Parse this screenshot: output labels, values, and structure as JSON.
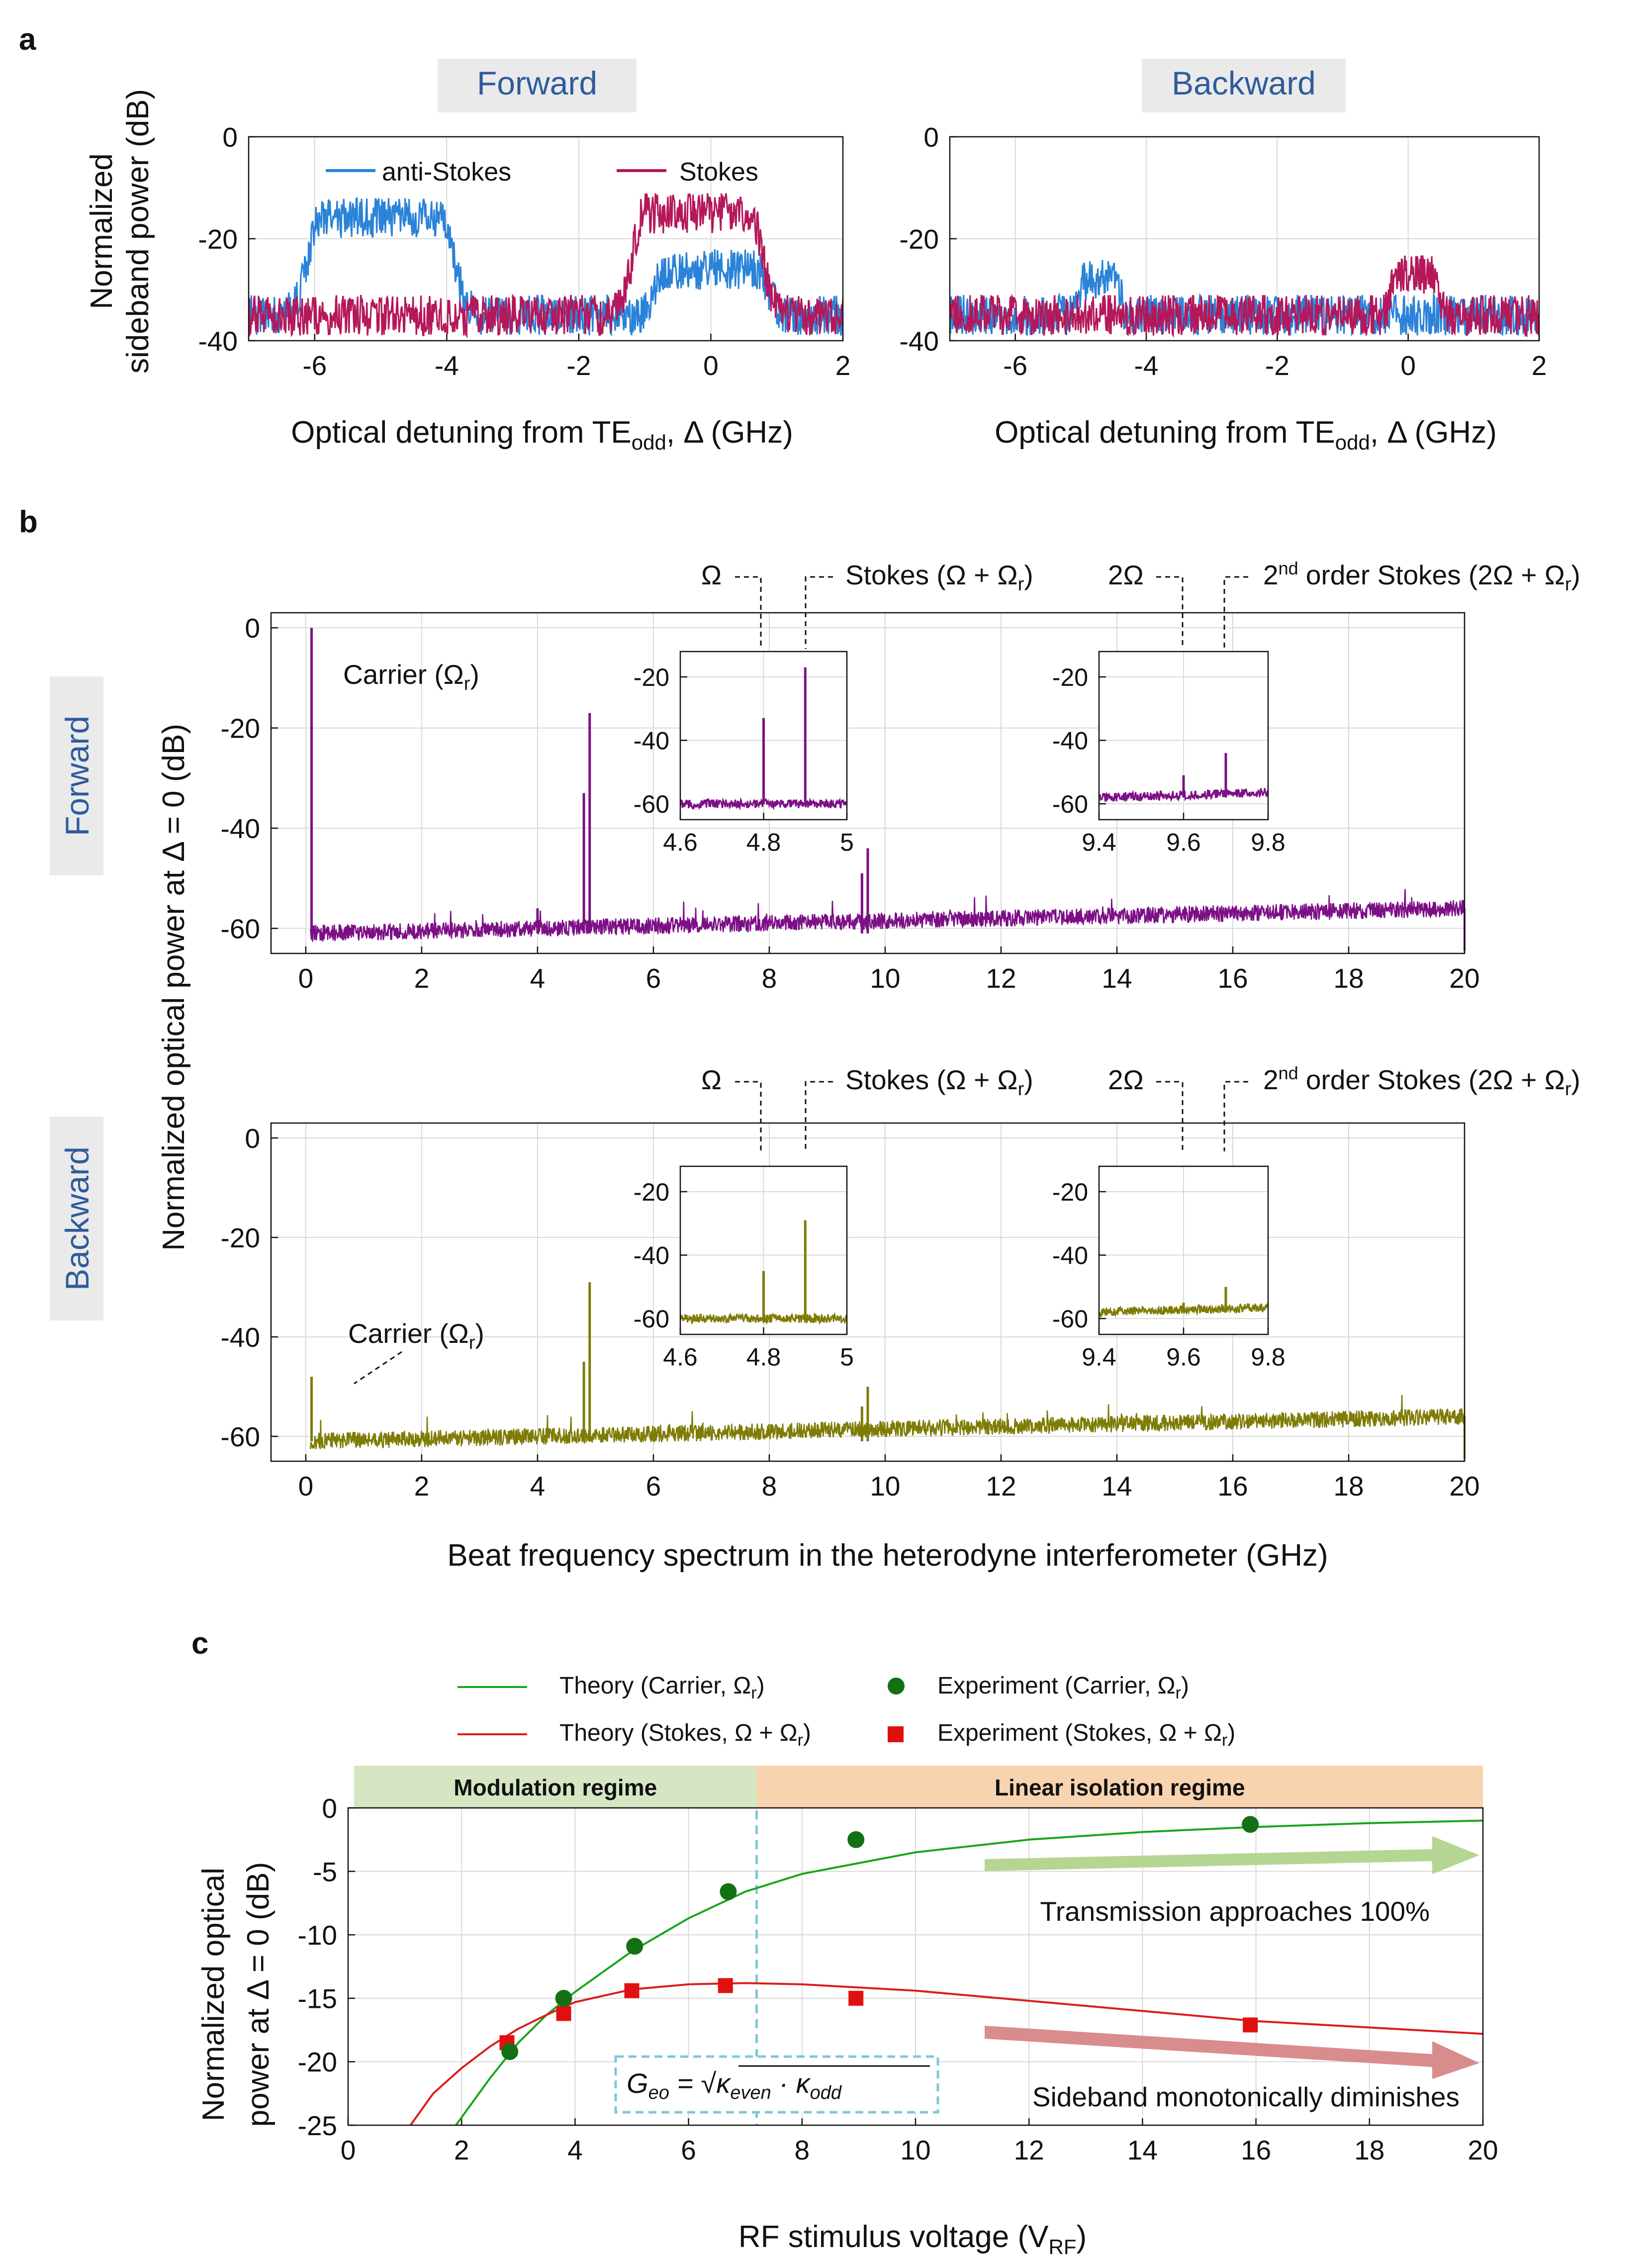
{
  "panels": {
    "a": {
      "letter": "a",
      "ylabel_line1": "Normalized",
      "ylabel_line2": "sideband power (dB)",
      "xlabel": "Optical detuning from TE",
      "xlabel_sub": "odd",
      "xlabel_tail": ", Δ (GHz)",
      "forward_tag": "Forward",
      "backward_tag": "Backward",
      "legend_anti": "anti-Stokes",
      "legend_stokes": "Stokes"
    },
    "b": {
      "letter": "b",
      "ylabel": "Normalized optical power at Δ = 0 (dB)",
      "xlabel": "Beat frequency spectrum in the heterodyne interferometer (GHz)",
      "forward_tag": "Forward",
      "backward_tag": "Backward",
      "carrier_main": "Carrier (Ω",
      "carrier_sub": "r",
      "carrier_close": ")",
      "omega": "Ω",
      "stokes_main": "Stokes (Ω + Ω",
      "stokes_sub": "r",
      "stokes_close": ")",
      "two_omega": "2Ω",
      "second_main": "2",
      "second_sup": "nd",
      "second_tail": " order Stokes (2Ω + Ω",
      "second_sub": "r",
      "second_close": ")"
    },
    "c": {
      "letter": "c",
      "ylabel_line1": "Normalized optical",
      "ylabel_line2": "power at Δ = 0 (dB)",
      "xlabel_main": "RF stimulus voltage (V",
      "xlabel_sub": "RF",
      "xlabel_close": ")",
      "legend_theory_carrier_main": "Theory (Carrier, Ω",
      "legend_theory_carrier_sub": "r",
      "legend_theory_stokes_main": "Theory (Stokes, Ω + Ω",
      "legend_theory_stokes_sub": "r",
      "legend_exp_carrier_main": "Experiment (Carrier, Ω",
      "legend_exp_carrier_sub": "r",
      "legend_exp_stokes_main": "Experiment (Stokes, Ω + Ω",
      "legend_exp_stokes_sub": "r",
      "regime_modulation": "Modulation regime",
      "regime_linear": "Linear isolation regime",
      "arrow_text_upper": "Transmission approaches 100%",
      "arrow_text_lower": "Sideband monotonically diminishes",
      "geo_G": "G",
      "geo_G_sub": "eo",
      "geo_eq": " = √",
      "geo_k1": "κ",
      "geo_k1_sub": "even",
      "geo_dot": " · ",
      "geo_k2": "κ",
      "geo_k2_sub": "odd"
    }
  },
  "colors": {
    "anti_stokes": "#2a83d8",
    "stokes": "#b5185a",
    "forward_trace": "#7d0f86",
    "backward_trace": "#7e7c05",
    "tag_bg": "#eaeaea",
    "tag_text": "#2f5b9c",
    "theory_carrier": "#1aa51a",
    "theory_stokes": "#dd1c1c",
    "exp_carrier": "#137015",
    "exp_stokes": "#e01010",
    "regime_modulation_bg": "#d6e6c3",
    "regime_linear_bg": "#f8d3b0",
    "arrow_green": "#b5d593",
    "arrow_red": "#d98c8c",
    "geo_border": "#7fc7d8"
  },
  "chart_data": [
    {
      "id": "a_forward",
      "type": "line",
      "title": "Forward",
      "xlabel": "Optical detuning from TE_odd, Δ (GHz)",
      "ylabel": "Normalized sideband power (dB)",
      "xlim": [
        -7,
        2
      ],
      "ylim": [
        -40,
        0
      ],
      "xticks": [
        -6,
        -4,
        -2,
        0,
        2
      ],
      "yticks": [
        0,
        -20,
        -40
      ],
      "series": [
        {
          "name": "anti-Stokes",
          "color": "#2a83d8",
          "noise_floor_db": -35,
          "noise_spread_db": 4,
          "peaks": [
            {
              "center_ghz": -5.0,
              "width_ghz": 0.9,
              "level_db": -16
            },
            {
              "center_ghz": 0.0,
              "width_ghz": 0.7,
              "level_db": -26
            }
          ]
        },
        {
          "name": "Stokes",
          "color": "#b5185a",
          "noise_floor_db": -35,
          "noise_spread_db": 4,
          "peaks": [
            {
              "center_ghz": -0.2,
              "width_ghz": 0.8,
              "level_db": -15
            }
          ]
        }
      ]
    },
    {
      "id": "a_backward",
      "type": "line",
      "title": "Backward",
      "xlabel": "Optical detuning from TE_odd, Δ (GHz)",
      "xlim": [
        -7,
        2
      ],
      "ylim": [
        -40,
        0
      ],
      "xticks": [
        -6,
        -4,
        -2,
        0,
        2
      ],
      "yticks": [
        0,
        -20,
        -40
      ],
      "series": [
        {
          "name": "anti-Stokes",
          "color": "#2a83d8",
          "noise_floor_db": -35,
          "noise_spread_db": 4,
          "peaks": [
            {
              "center_ghz": -4.7,
              "width_ghz": 0.25,
              "level_db": -28
            }
          ]
        },
        {
          "name": "Stokes",
          "color": "#b5185a",
          "noise_floor_db": -35,
          "noise_spread_db": 4,
          "peaks": [
            {
              "center_ghz": 0.1,
              "width_ghz": 0.3,
              "level_db": -27
            }
          ]
        }
      ]
    },
    {
      "id": "b_forward",
      "type": "line",
      "title": "Forward",
      "xlabel": "Beat frequency spectrum in the heterodyne interferometer (GHz)",
      "ylabel": "Normalized optical power at Δ = 0 (dB)",
      "xlim": [
        -0.6,
        20
      ],
      "ylim": [
        -65,
        3
      ],
      "xticks": [
        0,
        2,
        4,
        6,
        8,
        10,
        12,
        14,
        16,
        18,
        20
      ],
      "yticks": [
        0,
        -20,
        -40,
        -60
      ],
      "noise_start_db": -61,
      "noise_end_db": -56,
      "noise_spread_db": 1.6,
      "spikes": [
        {
          "freq_ghz": 0.1,
          "level_db": 0
        },
        {
          "freq_ghz": 4.0,
          "level_db": -56
        },
        {
          "freq_ghz": 4.8,
          "level_db": -33
        },
        {
          "freq_ghz": 4.9,
          "level_db": -17
        },
        {
          "freq_ghz": 9.6,
          "level_db": -49
        },
        {
          "freq_ghz": 9.7,
          "level_db": -44
        }
      ],
      "insets": [
        {
          "xlim": [
            4.6,
            5.0
          ],
          "ylim": [
            -65,
            -12
          ],
          "xticks": [
            4.6,
            4.8,
            5
          ],
          "yticks": [
            -20,
            -40,
            -60
          ],
          "floor_db": -60,
          "peaks": [
            {
              "freq_ghz": 4.8,
              "level_db": -33
            },
            {
              "freq_ghz": 4.9,
              "level_db": -17
            }
          ]
        },
        {
          "xlim": [
            9.4,
            9.8
          ],
          "ylim": [
            -65,
            -12
          ],
          "xticks": [
            9.4,
            9.6,
            9.8
          ],
          "yticks": [
            -20,
            -40,
            -60
          ],
          "floor_db": -58,
          "peaks": [
            {
              "freq_ghz": 9.6,
              "level_db": -51
            },
            {
              "freq_ghz": 9.7,
              "level_db": -44
            }
          ]
        }
      ]
    },
    {
      "id": "b_backward",
      "type": "line",
      "title": "Backward",
      "xlabel": "Beat frequency spectrum in the heterodyne interferometer (GHz)",
      "xlim": [
        -0.6,
        20
      ],
      "ylim": [
        -65,
        3
      ],
      "xticks": [
        0,
        2,
        4,
        6,
        8,
        10,
        12,
        14,
        16,
        18,
        20
      ],
      "yticks": [
        0,
        -20,
        -40,
        -60
      ],
      "noise_start_db": -61,
      "noise_end_db": -56,
      "noise_spread_db": 1.6,
      "spikes": [
        {
          "freq_ghz": 0.1,
          "level_db": -48
        },
        {
          "freq_ghz": 4.8,
          "level_db": -45
        },
        {
          "freq_ghz": 4.9,
          "level_db": -29
        },
        {
          "freq_ghz": 9.6,
          "level_db": -54
        },
        {
          "freq_ghz": 9.7,
          "level_db": -50
        }
      ],
      "insets": [
        {
          "xlim": [
            4.6,
            5.0
          ],
          "ylim": [
            -65,
            -12
          ],
          "xticks": [
            4.6,
            4.8,
            5
          ],
          "yticks": [
            -20,
            -40,
            -60
          ],
          "floor_db": -60,
          "peaks": [
            {
              "freq_ghz": 4.8,
              "level_db": -45
            },
            {
              "freq_ghz": 4.9,
              "level_db": -29
            }
          ]
        },
        {
          "xlim": [
            9.4,
            9.8
          ],
          "ylim": [
            -65,
            -12
          ],
          "xticks": [
            9.4,
            9.6,
            9.8
          ],
          "yticks": [
            -20,
            -40,
            -60
          ],
          "floor_db": -58,
          "peaks": [
            {
              "freq_ghz": 9.6,
              "level_db": -55
            },
            {
              "freq_ghz": 9.7,
              "level_db": -50
            }
          ]
        }
      ]
    },
    {
      "id": "c",
      "type": "scatter",
      "xlabel": "RF stimulus voltage (V_RF)",
      "ylabel": "Normalized optical power at Δ = 0 (dB)",
      "xlim": [
        0,
        20
      ],
      "ylim": [
        -25,
        0
      ],
      "xticks": [
        0,
        2,
        4,
        6,
        8,
        10,
        12,
        14,
        16,
        18,
        20
      ],
      "yticks": [
        0,
        -5,
        -10,
        -15,
        -20,
        -25
      ],
      "regime_boundary_v": 7.2,
      "theory_carrier": {
        "x": [
          1.9,
          2.5,
          3.0,
          3.5,
          4.0,
          5.0,
          6.0,
          7.0,
          8.0,
          10.0,
          12.0,
          14.0,
          16.0,
          18.0,
          20.0
        ],
        "y": [
          -25.0,
          -21.3,
          -18.5,
          -16.3,
          -14.5,
          -11.3,
          -8.7,
          -6.6,
          -5.2,
          -3.5,
          -2.5,
          -1.9,
          -1.5,
          -1.2,
          -1.0
        ]
      },
      "theory_stokes": {
        "x": [
          1.1,
          1.5,
          2.0,
          2.5,
          3.0,
          3.5,
          4.0,
          5.0,
          6.0,
          7.0,
          8.0,
          10.0,
          12.0,
          14.0,
          16.0,
          18.0,
          20.0
        ],
        "y": [
          -25.0,
          -22.5,
          -20.5,
          -18.8,
          -17.4,
          -16.3,
          -15.3,
          -14.3,
          -13.9,
          -13.8,
          -13.9,
          -14.4,
          -15.2,
          -16.0,
          -16.8,
          -17.3,
          -17.8
        ]
      },
      "exp_carrier": {
        "x": [
          2.85,
          3.8,
          5.05,
          6.7,
          8.95,
          15.9
        ],
        "y": [
          -19.2,
          -15.0,
          -10.9,
          -6.6,
          -2.5,
          -1.3
        ]
      },
      "exp_stokes": {
        "x": [
          2.8,
          3.8,
          5.0,
          6.65,
          8.95,
          15.9
        ],
        "y": [
          -18.5,
          -16.2,
          -14.4,
          -14.0,
          -15.0,
          -17.1
        ]
      }
    }
  ]
}
